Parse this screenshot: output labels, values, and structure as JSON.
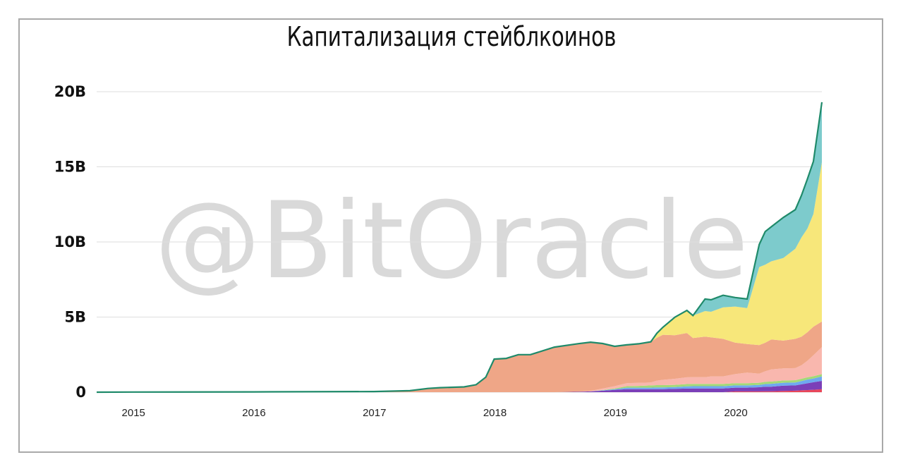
{
  "chart_data": {
    "type": "area",
    "stacked": true,
    "title": "Капитализация стейблкоинов",
    "xlabel": "",
    "ylabel": "",
    "x_ticks": [
      "2015",
      "2016",
      "2017",
      "2018",
      "2019",
      "2020"
    ],
    "y_ticks": [
      "0",
      "5B",
      "10B",
      "15B",
      "20B"
    ],
    "ylim": [
      0,
      20
    ],
    "y_unit": "B",
    "grid": true,
    "legend": "none",
    "watermark": "@BitOracle",
    "x": [
      2014.7,
      2015.0,
      2016.0,
      2017.0,
      2017.3,
      2017.45,
      2017.55,
      2017.75,
      2017.85,
      2017.93,
      2018.0,
      2018.1,
      2018.2,
      2018.3,
      2018.5,
      2018.7,
      2018.8,
      2018.9,
      2019.0,
      2019.1,
      2019.2,
      2019.3,
      2019.35,
      2019.4,
      2019.5,
      2019.6,
      2019.65,
      2019.75,
      2019.8,
      2019.9,
      2020.0,
      2020.1,
      2020.2,
      2020.25,
      2020.3,
      2020.4,
      2020.5,
      2020.55,
      2020.6,
      2020.65,
      2020.72
    ],
    "series": [
      {
        "color": "#e8465a",
        "values": [
          0,
          0,
          0,
          0,
          0,
          0,
          0,
          0,
          0,
          0,
          0,
          0,
          0,
          0,
          0,
          0,
          0,
          0,
          0,
          0,
          0,
          0,
          0,
          0,
          0,
          0,
          0,
          0,
          0,
          0,
          0.05,
          0.05,
          0.05,
          0.06,
          0.06,
          0.08,
          0.1,
          0.12,
          0.14,
          0.16,
          0.2
        ]
      },
      {
        "color": "#7b3fb8",
        "values": [
          0,
          0,
          0,
          0,
          0,
          0,
          0,
          0,
          0,
          0,
          0,
          0,
          0,
          0,
          0,
          0.03,
          0.05,
          0.1,
          0.15,
          0.2,
          0.2,
          0.2,
          0.2,
          0.2,
          0.22,
          0.24,
          0.25,
          0.25,
          0.25,
          0.25,
          0.25,
          0.25,
          0.28,
          0.3,
          0.3,
          0.35,
          0.35,
          0.4,
          0.45,
          0.5,
          0.55
        ]
      },
      {
        "color": "#6fa8f0",
        "values": [
          0,
          0,
          0,
          0,
          0,
          0,
          0,
          0,
          0,
          0,
          0,
          0,
          0,
          0,
          0,
          0,
          0,
          0.02,
          0.05,
          0.1,
          0.1,
          0.1,
          0.12,
          0.12,
          0.12,
          0.15,
          0.15,
          0.15,
          0.15,
          0.15,
          0.15,
          0.15,
          0.15,
          0.18,
          0.2,
          0.2,
          0.2,
          0.22,
          0.25,
          0.25,
          0.3
        ]
      },
      {
        "color": "#a3d977",
        "values": [
          0,
          0,
          0,
          0,
          0,
          0,
          0,
          0,
          0,
          0,
          0,
          0,
          0,
          0,
          0,
          0,
          0,
          0.02,
          0.05,
          0.1,
          0.12,
          0.15,
          0.15,
          0.15,
          0.15,
          0.15,
          0.15,
          0.15,
          0.15,
          0.15,
          0.15,
          0.15,
          0.15,
          0.15,
          0.15,
          0.15,
          0.15,
          0.15,
          0.15,
          0.15,
          0.15
        ]
      },
      {
        "color": "#f9b7ae",
        "values": [
          0,
          0,
          0,
          0,
          0,
          0,
          0,
          0,
          0,
          0,
          0,
          0,
          0,
          0,
          0,
          0,
          0.03,
          0.1,
          0.15,
          0.2,
          0.2,
          0.2,
          0.3,
          0.35,
          0.4,
          0.45,
          0.45,
          0.45,
          0.5,
          0.5,
          0.6,
          0.7,
          0.6,
          0.7,
          0.8,
          0.8,
          0.8,
          0.9,
          1.1,
          1.4,
          1.8
        ]
      },
      {
        "color": "#efa687",
        "values": [
          0,
          0.01,
          0.02,
          0.04,
          0.1,
          0.25,
          0.3,
          0.35,
          0.5,
          1.0,
          2.2,
          2.25,
          2.5,
          2.5,
          3.0,
          3.2,
          3.25,
          3.0,
          2.65,
          2.55,
          2.6,
          2.7,
          2.85,
          3.0,
          2.9,
          2.95,
          2.6,
          2.7,
          2.6,
          2.5,
          2.1,
          1.9,
          1.9,
          1.9,
          2.0,
          1.85,
          1.95,
          1.9,
          1.9,
          1.9,
          1.7
        ]
      },
      {
        "color": "#f7e77a",
        "values": [
          0,
          0,
          0,
          0,
          0,
          0,
          0,
          0,
          0,
          0,
          0,
          0,
          0,
          0,
          0,
          0,
          0,
          0,
          0,
          0,
          0,
          0,
          0.3,
          0.5,
          1.2,
          1.5,
          1.5,
          1.7,
          1.7,
          2.1,
          2.4,
          2.4,
          5.2,
          5.2,
          5.2,
          5.5,
          6.0,
          6.6,
          6.9,
          7.5,
          10.6
        ]
      },
      {
        "color": "#7dcbcc",
        "values": [
          0,
          0,
          0,
          0,
          0,
          0,
          0,
          0,
          0,
          0,
          0,
          0,
          0,
          0,
          0,
          0,
          0,
          0,
          0,
          0,
          0,
          0,
          0,
          0,
          0,
          0,
          0,
          0.8,
          0.8,
          0.8,
          0.6,
          0.6,
          1.5,
          2.2,
          2.3,
          2.7,
          2.6,
          2.8,
          3.3,
          3.5,
          4.0
        ]
      }
    ]
  }
}
